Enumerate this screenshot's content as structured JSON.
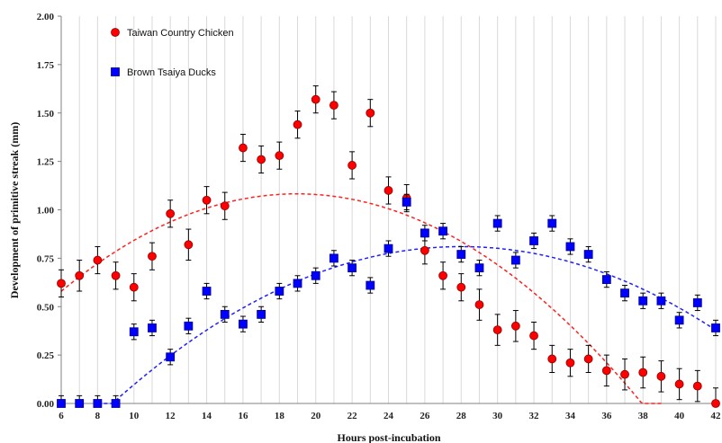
{
  "chart_data": {
    "type": "scatter",
    "xlabel": "Hours post-incubation",
    "ylabel": "Development of primitive streak (mm)",
    "xlim": [
      6,
      42
    ],
    "ylim": [
      0,
      2.0
    ],
    "x_ticks": [
      6,
      8,
      10,
      12,
      14,
      16,
      18,
      20,
      22,
      24,
      26,
      28,
      30,
      32,
      34,
      36,
      38,
      40,
      42
    ],
    "y_ticks": [
      0.0,
      0.25,
      0.5,
      0.75,
      1.0,
      1.25,
      1.5,
      1.75,
      2.0
    ],
    "y_tick_labels": [
      "0.00",
      "0.25",
      "0.50",
      "0.75",
      "1.00",
      "1.25",
      "1.50",
      "1.75",
      "2.00"
    ],
    "grid": "vertical",
    "legend": "top-left",
    "series": [
      {
        "name": "Taiwan Country Chicken",
        "marker": "circle",
        "color": "#ff0000",
        "trend_color": "#ff2020",
        "x": [
          6,
          7,
          8,
          9,
          10,
          11,
          12,
          13,
          14,
          15,
          16,
          17,
          18,
          19,
          20,
          21,
          22,
          23,
          24,
          25,
          26,
          27,
          28,
          29,
          30,
          31,
          32,
          33,
          34,
          35,
          36,
          37,
          38,
          39,
          40,
          41,
          42
        ],
        "y": [
          0.62,
          0.66,
          0.74,
          0.66,
          0.6,
          0.76,
          0.98,
          0.82,
          1.05,
          1.02,
          1.32,
          1.26,
          1.28,
          1.44,
          1.57,
          1.54,
          1.23,
          1.5,
          1.1,
          1.06,
          0.79,
          0.66,
          0.6,
          0.51,
          0.38,
          0.4,
          0.35,
          0.23,
          0.21,
          0.23,
          0.17,
          0.15,
          0.16,
          0.14,
          0.1,
          0.09,
          0.0
        ],
        "err": [
          0.07,
          0.08,
          0.07,
          0.07,
          0.07,
          0.07,
          0.07,
          0.08,
          0.07,
          0.07,
          0.07,
          0.07,
          0.07,
          0.07,
          0.07,
          0.07,
          0.07,
          0.07,
          0.07,
          0.07,
          0.07,
          0.07,
          0.07,
          0.08,
          0.08,
          0.08,
          0.07,
          0.07,
          0.07,
          0.07,
          0.08,
          0.08,
          0.08,
          0.08,
          0.08,
          0.08,
          0.08
        ],
        "trend": {
          "type": "quadratic",
          "a": -0.003,
          "b": 0.1137,
          "c": 0.005,
          "x_range": [
            6,
            39
          ]
        }
      },
      {
        "name": "Brown Tsaiya Ducks",
        "marker": "square",
        "color": "#0000ff",
        "trend_color": "#2020ff",
        "x": [
          6,
          7,
          8,
          9,
          10,
          11,
          12,
          13,
          14,
          15,
          16,
          17,
          18,
          19,
          20,
          21,
          22,
          23,
          24,
          25,
          26,
          27,
          28,
          29,
          30,
          31,
          32,
          33,
          34,
          35,
          36,
          37,
          38,
          39,
          40,
          41,
          42
        ],
        "y": [
          0.0,
          0.0,
          0.0,
          0.0,
          0.37,
          0.39,
          0.24,
          0.4,
          0.58,
          0.46,
          0.41,
          0.46,
          0.58,
          0.62,
          0.66,
          0.75,
          0.7,
          0.61,
          0.8,
          1.04,
          0.88,
          0.89,
          0.77,
          0.7,
          0.93,
          0.74,
          0.84,
          0.93,
          0.81,
          0.77,
          0.64,
          0.57,
          0.53,
          0.53,
          0.43,
          0.52,
          0.39
        ],
        "err": [
          0.04,
          0.04,
          0.04,
          0.04,
          0.04,
          0.04,
          0.04,
          0.04,
          0.04,
          0.04,
          0.04,
          0.04,
          0.04,
          0.04,
          0.04,
          0.04,
          0.04,
          0.04,
          0.04,
          0.04,
          0.04,
          0.04,
          0.04,
          0.04,
          0.04,
          0.04,
          0.04,
          0.04,
          0.04,
          0.04,
          0.04,
          0.04,
          0.04,
          0.04,
          0.04,
          0.04,
          0.04
        ],
        "trend": {
          "type": "quadratic",
          "a": -0.0022,
          "b": 0.1232,
          "c": -0.9148,
          "x_range": [
            8,
            42
          ]
        }
      }
    ]
  }
}
